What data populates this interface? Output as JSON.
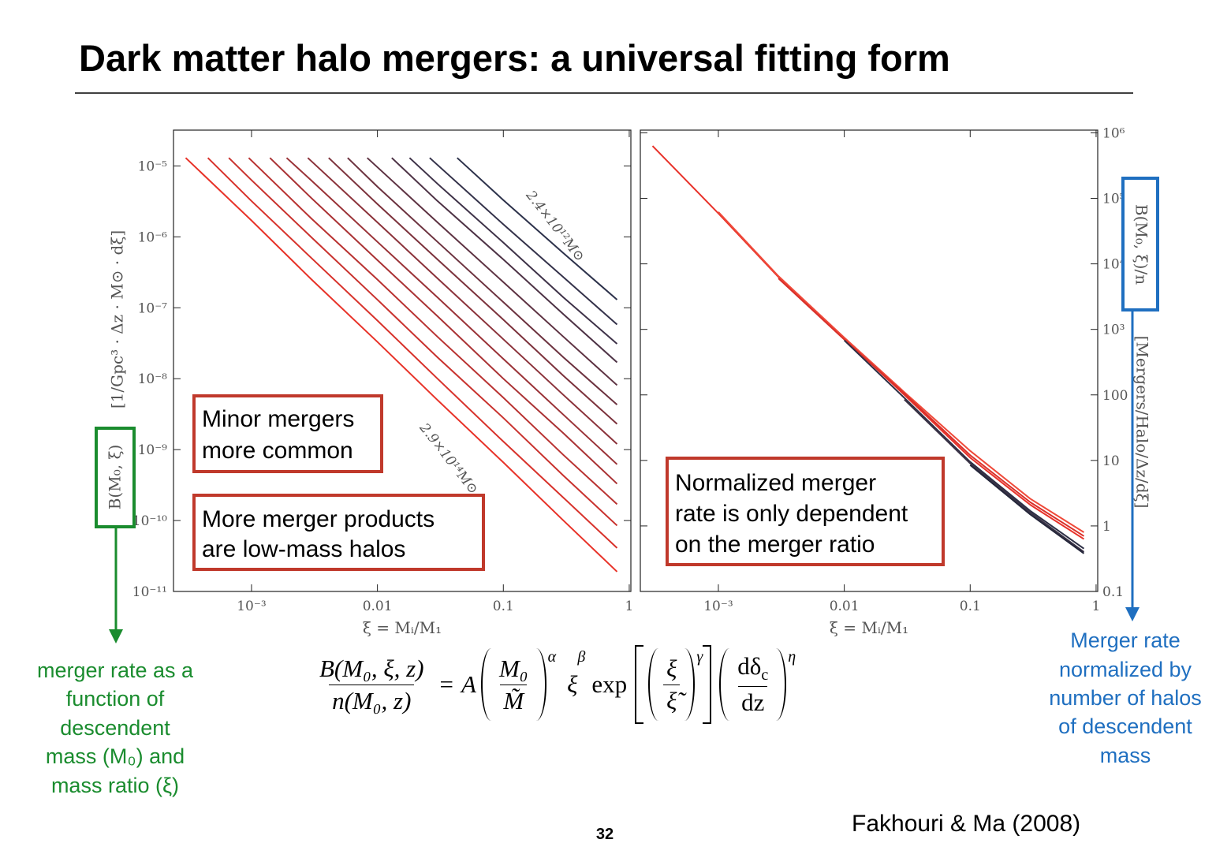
{
  "title": "Dark matter halo mergers: a universal fitting form",
  "chart_data": [
    {
      "type": "line",
      "log_x": true,
      "log_y": true,
      "xlim": [
        0.00024,
        1.03
      ],
      "ylim": [
        1e-11,
        3.2e-05
      ],
      "xticks": [
        {
          "value": 0.001,
          "label": "10⁻³"
        },
        0.01,
        0.1,
        1
      ],
      "yticks": [
        {
          "value": 1e-05,
          "label": "10⁻⁵"
        },
        {
          "value": 1e-06,
          "label": "10⁻⁶"
        },
        {
          "value": 1e-07,
          "label": "10⁻⁷"
        },
        {
          "value": 1e-08,
          "label": "10⁻⁸"
        },
        {
          "value": 1e-09,
          "label": "10⁻⁹"
        },
        {
          "value": 1e-10,
          "label": "10⁻¹⁰"
        },
        {
          "value": 1e-11,
          "label": "10⁻¹¹"
        }
      ],
      "xlabel": "ξ = Mᵢ/M₁",
      "ylabel": "[1/Gpc³ · Δz · M⊙ · dξ]",
      "ylabel_boxed": "B(M₀, ξ)",
      "yaxis_side": "left",
      "annotations": [
        "2.4×10¹²M⊙",
        "2.9×10¹⁴M⊙"
      ],
      "series": [
        {
          "color": "#e83228",
          "x": [
            0.0003,
            0.001,
            0.003,
            0.01,
            0.03,
            0.1,
            0.3,
            0.8
          ],
          "values": [
            1.3e-05,
            1.7e-06,
            2.5e-07,
            3.3e-08,
            5e-09,
            6.6e-10,
            1e-10,
            1.9e-11
          ]
        },
        {
          "color": "#d8322b",
          "x": [
            0.00045,
            0.001,
            0.003,
            0.01,
            0.03,
            0.1,
            0.3,
            0.8
          ],
          "values": [
            1.3e-05,
            3.2e-06,
            5e-07,
            6.6e-08,
            1e-08,
            1.3e-09,
            2.1e-10,
            4.1e-11
          ]
        },
        {
          "color": "#c9322e",
          "x": [
            0.00066,
            0.001,
            0.003,
            0.01,
            0.03,
            0.1,
            0.3,
            0.8
          ],
          "values": [
            1.3e-05,
            6.3e-06,
            9.8e-07,
            1.3e-07,
            2e-08,
            2.8e-09,
            4.3e-10,
            8.5e-11
          ]
        },
        {
          "color": "#b93231",
          "x": [
            0.00095,
            0.003,
            0.01,
            0.03,
            0.1,
            0.3,
            0.8
          ],
          "values": [
            1.3e-05,
            1.8e-06,
            2.5e-07,
            3.9e-08,
            5.4e-09,
            8.4e-10,
            1.7e-10
          ]
        },
        {
          "color": "#aa3234",
          "x": [
            0.0014,
            0.003,
            0.01,
            0.03,
            0.1,
            0.3,
            0.8
          ],
          "values": [
            1.3e-05,
            3.5e-06,
            4.7e-07,
            7.6e-08,
            1e-08,
            1.7e-09,
            3.3e-10
          ]
        },
        {
          "color": "#9a3237",
          "x": [
            0.0019,
            0.003,
            0.01,
            0.03,
            0.1,
            0.3,
            0.8
          ],
          "values": [
            1.3e-05,
            6.2e-06,
            8.5e-07,
            1.4e-07,
            1.9e-08,
            3.1e-09,
            6.2e-10
          ]
        },
        {
          "color": "#8b323a",
          "x": [
            0.0028,
            0.01,
            0.03,
            0.1,
            0.3,
            0.8
          ],
          "values": [
            1.3e-05,
            1.6e-06,
            2.6e-07,
            3.6e-08,
            5.9e-09,
            1.2e-09
          ]
        },
        {
          "color": "#7c323c",
          "x": [
            0.0041,
            0.01,
            0.03,
            0.1,
            0.3,
            0.8
          ],
          "values": [
            1.3e-05,
            2.9e-06,
            4.8e-07,
            6.8e-08,
            1.1e-08,
            2.3e-09
          ]
        },
        {
          "color": "#6c323f",
          "x": [
            0.0058,
            0.01,
            0.03,
            0.1,
            0.3,
            0.8
          ],
          "values": [
            1.3e-05,
            5.1e-06,
            8.5e-07,
            1.2e-07,
            2e-08,
            4.3e-09
          ]
        },
        {
          "color": "#5d3242",
          "x": [
            0.0083,
            0.03,
            0.1,
            0.3,
            0.8
          ],
          "values": [
            1.3e-05,
            1.6e-06,
            2.3e-07,
            3.9e-08,
            8.1e-09
          ]
        },
        {
          "color": "#4d3245",
          "x": [
            0.013,
            0.03,
            0.1,
            0.3,
            0.8
          ],
          "values": [
            1.3e-05,
            3.2e-06,
            4.8e-07,
            8.1e-08,
            1.7e-08
          ]
        },
        {
          "color": "#3e3248",
          "x": [
            0.018,
            0.03,
            0.1,
            0.3,
            0.8
          ],
          "values": [
            1.3e-05,
            5.6e-06,
            8.3e-07,
            1.4e-07,
            3.1e-08
          ]
        },
        {
          "color": "#34324a",
          "x": [
            0.026,
            0.1,
            0.3,
            0.8
          ],
          "values": [
            1.3e-05,
            1.5e-06,
            2.7e-07,
            5.8e-08
          ]
        },
        {
          "color": "#2d324b",
          "x": [
            0.043,
            0.1,
            0.3,
            0.8
          ],
          "values": [
            1.3e-05,
            3.3e-06,
            5.9e-07,
            1.3e-07
          ]
        }
      ]
    },
    {
      "type": "line",
      "log_x": true,
      "log_y": true,
      "xlim": [
        0.00024,
        1.03
      ],
      "ylim": [
        0.1,
        1100000
      ],
      "xticks": [
        {
          "value": 0.001,
          "label": "10⁻³"
        },
        0.01,
        0.1,
        1
      ],
      "yticks": [
        {
          "value": 1000000,
          "label": "10⁶"
        },
        {
          "value": 100000,
          "label": "10⁵"
        },
        {
          "value": 10000,
          "label": "10⁴"
        },
        {
          "value": 1000,
          "label": "10³"
        },
        100,
        10,
        1,
        0.1
      ],
      "xlabel": "ξ = Mᵢ/M₁",
      "ylabel": "[Mergers/Halo/Δz/dξ]",
      "ylabel_boxed": "B(M₀, ξ)/n",
      "yaxis_side": "right",
      "x": [
        0.0003,
        0.001,
        0.003,
        0.01,
        0.03,
        0.1,
        0.3,
        0.8
      ],
      "series": [
        {
          "color": "#e8322a",
          "values": [
            630000,
            59000,
            6300,
            720,
            100,
            11,
            2.1,
            0.63
          ]
        },
        {
          "color": "#ef4a3a",
          "values": [
            null,
            62000,
            6500,
            750,
            110,
            14,
            2.6,
            0.8
          ]
        },
        {
          "color": "#d9302a",
          "values": [
            null,
            null,
            6000,
            700,
            105,
            12,
            2.3,
            0.7
          ]
        },
        {
          "color": "#2d2f45",
          "values": [
            null,
            null,
            null,
            680,
            90,
            9.5,
            1.7,
            0.45
          ]
        },
        {
          "color": "#3a3346",
          "values": [
            null,
            null,
            null,
            null,
            85,
            9,
            1.6,
            0.4
          ]
        },
        {
          "color": "#24263a",
          "values": [
            null,
            null,
            null,
            null,
            null,
            8.5,
            1.5,
            0.38
          ]
        }
      ]
    }
  ],
  "callouts": {
    "minor": [
      "Minor mergers",
      "more common"
    ],
    "products": [
      "More merger products",
      "are low-mass halos"
    ],
    "normalized": [
      "Normalized merger",
      "rate is only dependent",
      "on the merger ratio"
    ],
    "left_note": [
      "merger rate as a",
      "function of",
      "descendent",
      "mass (M₀) and",
      "mass ratio (ξ)"
    ],
    "right_note": [
      "Merger rate",
      "normalized by",
      "number of halos",
      "of descendent",
      "mass"
    ]
  },
  "formula": {
    "lhs_num": "B(M₀, ξ, z)",
    "lhs_den": "n(M₀, z)",
    "equals": "=",
    "coef": "A",
    "f1_num": "M₀",
    "f1_den": "M̃",
    "alpha": "α",
    "xi": "ξ",
    "beta": "β",
    "exp": "exp",
    "f2_num": "ξ",
    "f2_den": "ξ̃",
    "gamma": "γ",
    "f3_num": "dδ",
    "f3_num_sub": "c",
    "f3_den": "dz",
    "eta": "η"
  },
  "page_number": "32",
  "citation": "Fakhouri & Ma (2008)"
}
